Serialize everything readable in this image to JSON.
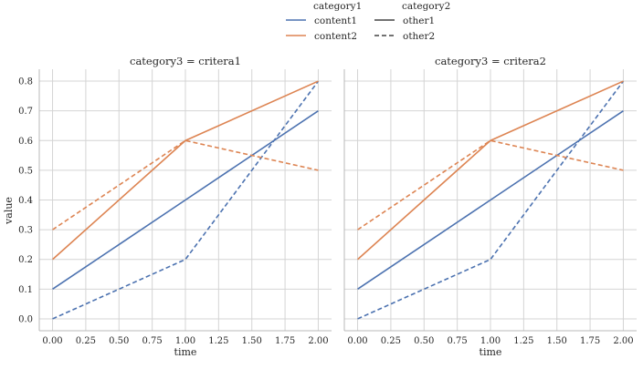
{
  "chart_data": {
    "type": "line",
    "ylabel": "value",
    "xlabel": "time",
    "xlim": [
      -0.1,
      2.1
    ],
    "ylim": [
      -0.04,
      0.84
    ],
    "xticks": [
      "0.00",
      "0.25",
      "0.50",
      "0.75",
      "1.00",
      "1.25",
      "1.50",
      "1.75",
      "2.00"
    ],
    "xtick_values": [
      0,
      0.25,
      0.5,
      0.75,
      1.0,
      1.25,
      1.5,
      1.75,
      2.0
    ],
    "yticks": [
      "0.0",
      "0.1",
      "0.2",
      "0.3",
      "0.4",
      "0.5",
      "0.6",
      "0.7",
      "0.8"
    ],
    "ytick_values": [
      0,
      0.1,
      0.2,
      0.3,
      0.4,
      0.5,
      0.6,
      0.7,
      0.8
    ],
    "grid": true,
    "legend": {
      "placement": "top-center",
      "groups": [
        {
          "title": "category1",
          "items": [
            {
              "label": "content1",
              "color": "#4c72b0",
              "dash": "solid"
            },
            {
              "label": "content2",
              "color": "#dd8452",
              "dash": "solid"
            }
          ]
        },
        {
          "title": "category2",
          "items": [
            {
              "label": "other1",
              "color": "#444444",
              "dash": "solid"
            },
            {
              "label": "other2",
              "color": "#444444",
              "dash": "dashed"
            }
          ]
        }
      ]
    },
    "panels": [
      {
        "title": "category3 = critera1",
        "series": [
          {
            "category1": "content1",
            "category2": "other1",
            "color": "#4c72b0",
            "dash": "solid",
            "x": [
              0,
              1,
              2
            ],
            "y": [
              0.1,
              0.4,
              0.7
            ]
          },
          {
            "category1": "content1",
            "category2": "other2",
            "color": "#4c72b0",
            "dash": "dashed",
            "x": [
              0,
              1,
              2
            ],
            "y": [
              0.0,
              0.2,
              0.8
            ]
          },
          {
            "category1": "content2",
            "category2": "other1",
            "color": "#dd8452",
            "dash": "solid",
            "x": [
              0,
              1,
              2
            ],
            "y": [
              0.2,
              0.6,
              0.8
            ]
          },
          {
            "category1": "content2",
            "category2": "other2",
            "color": "#dd8452",
            "dash": "dashed",
            "x": [
              0,
              1,
              2
            ],
            "y": [
              0.3,
              0.6,
              0.5
            ]
          }
        ]
      },
      {
        "title": "category3 = critera2",
        "series": [
          {
            "category1": "content1",
            "category2": "other1",
            "color": "#4c72b0",
            "dash": "solid",
            "x": [
              0,
              1,
              2
            ],
            "y": [
              0.1,
              0.4,
              0.7
            ]
          },
          {
            "category1": "content1",
            "category2": "other2",
            "color": "#4c72b0",
            "dash": "dashed",
            "x": [
              0,
              1,
              2
            ],
            "y": [
              0.0,
              0.2,
              0.8
            ]
          },
          {
            "category1": "content2",
            "category2": "other1",
            "color": "#dd8452",
            "dash": "solid",
            "x": [
              0,
              1,
              2
            ],
            "y": [
              0.2,
              0.6,
              0.8
            ]
          },
          {
            "category1": "content2",
            "category2": "other2",
            "color": "#dd8452",
            "dash": "dashed",
            "x": [
              0,
              1,
              2
            ],
            "y": [
              0.3,
              0.6,
              0.5
            ]
          }
        ]
      }
    ]
  }
}
